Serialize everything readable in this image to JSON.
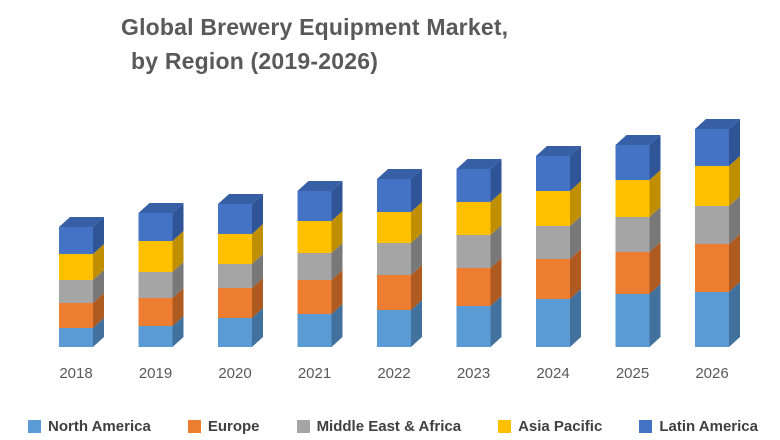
{
  "title": {
    "line1": "Global Brewery Equipment Market,",
    "line2": "by Region (2019-2026)"
  },
  "colors": {
    "background": "#FFFFFF",
    "title_text": "#595959",
    "axis_text": "#595959",
    "legend_text": "#404040",
    "bar_top_face": "#365FA6"
  },
  "chart_data": {
    "type": "bar",
    "subtype": "stacked-3d",
    "title": "Global Brewery Equipment Market, by Region (2019-2026)",
    "xlabel": "",
    "ylabel": "",
    "axis_values_shown": false,
    "grid": false,
    "legend_position": "bottom",
    "categories": [
      "2018",
      "2019",
      "2020",
      "2021",
      "2022",
      "2023",
      "2024",
      "2025",
      "2026"
    ],
    "series": [
      {
        "name": "North America",
        "color": "#5B9BD5",
        "side_color": "#41719C",
        "values": [
          19,
          21,
          29,
          33,
          37,
          41,
          48,
          53,
          55
        ]
      },
      {
        "name": "Europe",
        "color": "#ED7D31",
        "side_color": "#AE5A21",
        "values": [
          25,
          28,
          30,
          34,
          35,
          38,
          40,
          42,
          48
        ]
      },
      {
        "name": "Middle East & Africa",
        "color": "#A5A5A5",
        "side_color": "#787878",
        "values": [
          23,
          26,
          24,
          27,
          32,
          33,
          33,
          35,
          38
        ]
      },
      {
        "name": "Asia Pacific",
        "color": "#FFC000",
        "side_color": "#BF8F00",
        "values": [
          26,
          31,
          30,
          32,
          31,
          33,
          35,
          37,
          40
        ]
      },
      {
        "name": "Latin America",
        "color": "#4472C4",
        "side_color": "#2F5597",
        "values": [
          27,
          28,
          30,
          30,
          33,
          33,
          35,
          35,
          37
        ]
      }
    ],
    "totals": [
      120,
      134,
      143,
      156,
      168,
      178,
      191,
      202,
      218
    ],
    "units": "relative (no value axis shown)"
  }
}
